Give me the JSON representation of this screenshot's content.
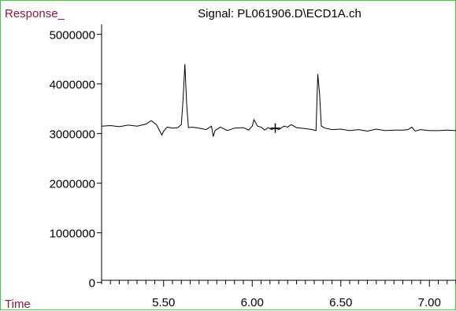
{
  "chart_data": {
    "type": "line",
    "title": "Signal: PL061906.D\\ECD1A.ch",
    "ylabel": "Response_",
    "xlabel": "Time",
    "xlim": [
      5.15,
      7.15
    ],
    "ylim": [
      -100000,
      5200000
    ],
    "x_ticks": [
      5.5,
      6.0,
      6.5,
      7.0
    ],
    "x_tick_labels": [
      "5.50",
      "6.00",
      "6.50",
      "7.00"
    ],
    "x_minor_step": 0.05,
    "y_ticks": [
      0,
      1000000,
      2000000,
      3000000,
      4000000,
      5000000
    ],
    "y_tick_labels": [
      "0",
      "1000000",
      "2000000",
      "3000000",
      "4000000",
      "5000000"
    ],
    "grid": false,
    "colors": {
      "line": "#000000",
      "frame": "#3ad13a",
      "corner_text": "#8b1a3a"
    },
    "series": [
      {
        "x": [
          5.15,
          5.2,
          5.25,
          5.3,
          5.35,
          5.4,
          5.43,
          5.46,
          5.49,
          5.5,
          5.52,
          5.55,
          5.58,
          5.6,
          5.61,
          5.62,
          5.63,
          5.64,
          5.66,
          5.7,
          5.74,
          5.77,
          5.78,
          5.79,
          5.82,
          5.86,
          5.9,
          5.95,
          5.98,
          6.0,
          6.01,
          6.03,
          6.05,
          6.07,
          6.09,
          6.11,
          6.13,
          6.15,
          6.18,
          6.2,
          6.22,
          6.25,
          6.3,
          6.34,
          6.36,
          6.37,
          6.38,
          6.39,
          6.41,
          6.45,
          6.5,
          6.55,
          6.6,
          6.65,
          6.7,
          6.75,
          6.8,
          6.85,
          6.88,
          6.9,
          6.92,
          6.95,
          7.0,
          7.05,
          7.1,
          7.15
        ],
        "y": [
          3150000,
          3160000,
          3140000,
          3170000,
          3150000,
          3190000,
          3260000,
          3180000,
          2970000,
          3050000,
          3130000,
          3110000,
          3120000,
          3180000,
          3700000,
          4400000,
          3600000,
          3120000,
          3130000,
          3110000,
          3080000,
          3150000,
          2940000,
          3060000,
          3130000,
          3060000,
          3110000,
          3120000,
          3070000,
          3150000,
          3280000,
          3150000,
          3130000,
          3070000,
          3120000,
          3080000,
          3110000,
          3080000,
          3150000,
          3130000,
          3180000,
          3120000,
          3100000,
          3080000,
          3060000,
          4200000,
          3800000,
          3150000,
          3110000,
          3080000,
          3090000,
          3060000,
          3080000,
          3050000,
          3090000,
          3060000,
          3070000,
          3070000,
          3080000,
          3130000,
          3050000,
          3080000,
          3060000,
          3060000,
          3070000,
          3060000
        ]
      }
    ],
    "marker": {
      "x": 6.13,
      "y": 3110000
    }
  }
}
